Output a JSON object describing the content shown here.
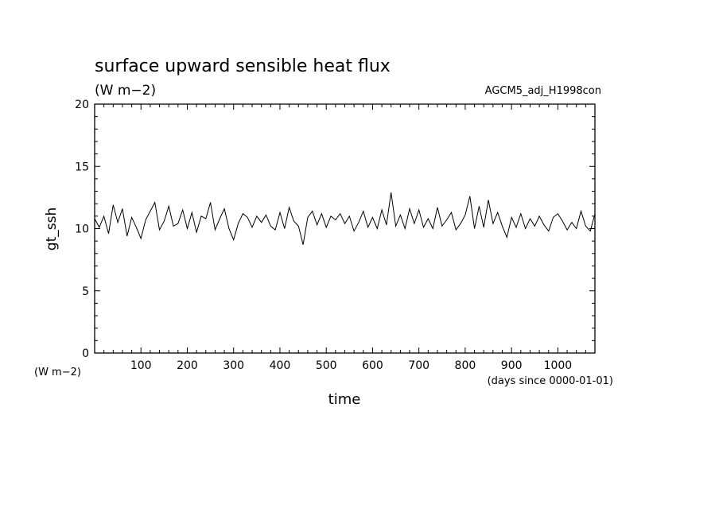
{
  "chart_data": {
    "type": "line",
    "title": "surface upward sensible heat flux",
    "subtitle": "(W m−2)",
    "dataset_label": "AGCM5_adj_H1998con",
    "ylabel": "gt_ssh",
    "yunits": "(W m−2)",
    "xlabel": "time",
    "xunits": "(days since 0000-01-01)",
    "xlim": [
      0,
      1080
    ],
    "ylim": [
      0,
      20
    ],
    "xticks": [
      100,
      200,
      300,
      400,
      500,
      600,
      700,
      800,
      900,
      1000
    ],
    "yticks": [
      0,
      5,
      10,
      15,
      20
    ],
    "line_color": "#000000",
    "series": [
      {
        "x": [
          0,
          10,
          20,
          30,
          40,
          50,
          60,
          70,
          80,
          90,
          100,
          110,
          120,
          130,
          140,
          150,
          160,
          170,
          180,
          190,
          200,
          210,
          220,
          230,
          240,
          250,
          260,
          270,
          280,
          290,
          300,
          310,
          320,
          330,
          340,
          350,
          360,
          370,
          380,
          390,
          400,
          410,
          420,
          430,
          440,
          450,
          460,
          470,
          480,
          490,
          500,
          510,
          520,
          530,
          540,
          550,
          560,
          570,
          580,
          590,
          600,
          610,
          620,
          630,
          640,
          650,
          660,
          670,
          680,
          690,
          700,
          710,
          720,
          730,
          740,
          750,
          760,
          770,
          780,
          790,
          800,
          810,
          820,
          830,
          840,
          850,
          860,
          870,
          880,
          890,
          900,
          910,
          920,
          930,
          940,
          950,
          960,
          970,
          980,
          990,
          1000,
          1010,
          1020,
          1030,
          1040,
          1050,
          1060,
          1070,
          1080
        ],
        "y": [
          10.8,
          10.1,
          11.0,
          9.6,
          11.9,
          10.5,
          11.6,
          9.4,
          10.9,
          10.1,
          9.2,
          10.7,
          11.4,
          12.1,
          9.9,
          10.6,
          11.8,
          10.2,
          10.4,
          11.5,
          10.0,
          11.3,
          9.7,
          11.0,
          10.8,
          12.1,
          9.9,
          10.8,
          11.6,
          10.0,
          9.1,
          10.4,
          11.2,
          10.9,
          10.1,
          11.0,
          10.5,
          11.1,
          10.2,
          9.9,
          11.3,
          10.0,
          11.7,
          10.6,
          10.2,
          8.7,
          10.9,
          11.4,
          10.3,
          11.2,
          10.1,
          11.0,
          10.7,
          11.2,
          10.4,
          11.0,
          9.8,
          10.5,
          11.4,
          10.1,
          10.9,
          10.0,
          11.5,
          10.3,
          12.9,
          10.2,
          11.1,
          10.0,
          11.6,
          10.4,
          11.5,
          10.1,
          10.8,
          10.0,
          11.7,
          10.2,
          10.7,
          11.3,
          9.9,
          10.4,
          11.1,
          12.6,
          10.0,
          11.8,
          10.1,
          12.3,
          10.4,
          11.3,
          10.2,
          9.3,
          10.9,
          10.1,
          11.2,
          10.0,
          10.8,
          10.2,
          11.0,
          10.3,
          9.8,
          10.9,
          11.2,
          10.6,
          9.9,
          10.5,
          10.0,
          11.4,
          10.2,
          9.8,
          11.2
        ]
      }
    ]
  }
}
